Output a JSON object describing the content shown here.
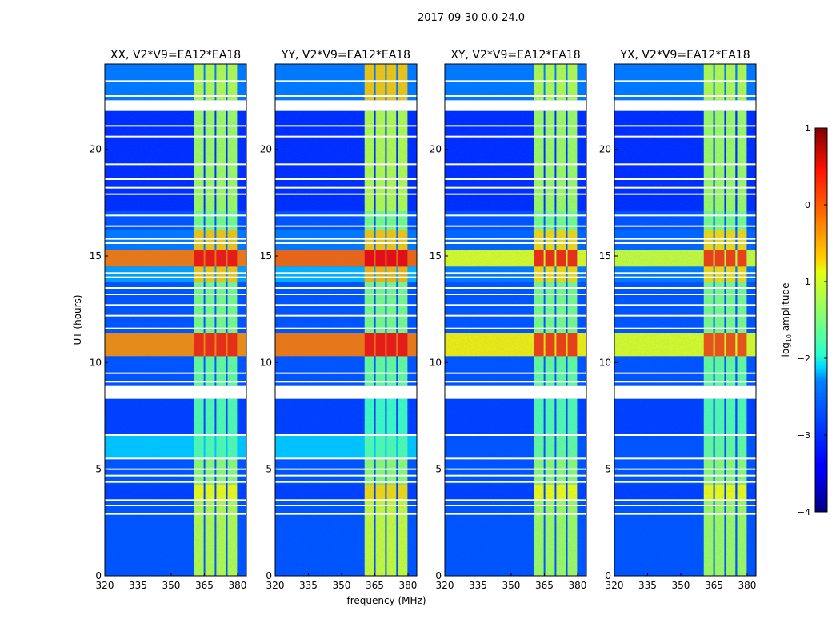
{
  "chart_data": {
    "type": "heatmap",
    "title": "2017-09-30 0.0-24.0",
    "xlabel": "frequency (MHz)",
    "ylabel": "UT (hours)",
    "xlim": [
      320,
      384
    ],
    "ylim": [
      0,
      24
    ],
    "xticks": [
      320,
      335,
      350,
      365,
      380
    ],
    "yticks": [
      0,
      5,
      10,
      15,
      20
    ],
    "panels": [
      {
        "title": "XX, V2*V9=EA12*EA18"
      },
      {
        "title": "YY, V2*V9=EA12*EA18"
      },
      {
        "title": "XY, V2*V9=EA12*EA18"
      },
      {
        "title": "YX, V2*V9=EA12*EA18"
      }
    ],
    "spectral_windows_mhz": [
      [
        360.4,
        364.7
      ],
      [
        365.4,
        369.7
      ],
      [
        370.4,
        374.7
      ],
      [
        375.5,
        379.8
      ]
    ],
    "time_bands": [
      {
        "ut": [
          0,
          3.6
        ],
        "bg": [
          -3.0,
          -3.0,
          -3.0,
          -3.0
        ],
        "spw": [
          -1.2,
          -1.1,
          -1.3,
          -1.3
        ]
      },
      {
        "ut": [
          3.6,
          4.3
        ],
        "bg": [
          -3.1,
          -3.1,
          -3.1,
          -3.1
        ],
        "spw": [
          -0.9,
          -0.7,
          -0.9,
          -0.9
        ]
      },
      {
        "ut": [
          4.3,
          5.5
        ],
        "bg": [
          -3.0,
          -3.0,
          -3.0,
          -3.0
        ],
        "spw": [
          -1.4,
          -1.4,
          -1.4,
          -1.4
        ]
      },
      {
        "ut": [
          5.5,
          6.6
        ],
        "bg": [
          -2.4,
          -2.4,
          -3.0,
          -3.0
        ],
        "spw": [
          -1.7,
          -1.7,
          -1.6,
          -1.6
        ]
      },
      {
        "ut": [
          6.6,
          8.3
        ],
        "bg": [
          -3.1,
          -3.1,
          -3.1,
          -3.1
        ],
        "spw": [
          -1.7,
          -1.8,
          -1.7,
          -1.7
        ]
      },
      {
        "ut": [
          8.9,
          10.3
        ],
        "bg": [
          -3.0,
          -3.0,
          -3.0,
          -3.0
        ],
        "spw": [
          -1.6,
          -1.6,
          -1.6,
          -1.6
        ]
      },
      {
        "ut": [
          10.3,
          11.4
        ],
        "bg": [
          -0.3,
          -0.2,
          -0.8,
          -1.0
        ],
        "spw": [
          0.2,
          0.3,
          0.1,
          0.0
        ]
      },
      {
        "ut": [
          11.4,
          13.8
        ],
        "bg": [
          -3.0,
          -3.0,
          -3.0,
          -3.0
        ],
        "spw": [
          -1.5,
          -1.5,
          -1.5,
          -1.5
        ]
      },
      {
        "ut": [
          13.8,
          14.5
        ],
        "bg": [
          -2.6,
          -2.5,
          -2.8,
          -2.8
        ],
        "spw": [
          -0.6,
          -0.5,
          -0.7,
          -0.7
        ]
      },
      {
        "ut": [
          14.5,
          15.3
        ],
        "bg": [
          -0.2,
          -0.1,
          -1.0,
          -1.1
        ],
        "spw": [
          0.3,
          0.4,
          0.2,
          0.1
        ]
      },
      {
        "ut": [
          15.3,
          16.2
        ],
        "bg": [
          -2.8,
          -2.8,
          -2.9,
          -2.9
        ],
        "spw": [
          -0.6,
          -0.6,
          -0.7,
          -0.7
        ]
      },
      {
        "ut": [
          16.2,
          17.1
        ],
        "bg": [
          -3.0,
          -3.0,
          -3.0,
          -3.0
        ],
        "spw": [
          -1.5,
          -1.5,
          -1.5,
          -1.5
        ]
      },
      {
        "ut": [
          17.1,
          21.8
        ],
        "bg": [
          -3.2,
          -3.2,
          -3.2,
          -3.2
        ],
        "spw": [
          -1.3,
          -1.2,
          -1.3,
          -1.3
        ]
      },
      {
        "ut": [
          22.3,
          24
        ],
        "bg": [
          -2.8,
          -2.8,
          -2.8,
          -2.8
        ],
        "spw": [
          -1.2,
          -0.6,
          -1.2,
          -1.2
        ]
      }
    ],
    "flagged_ut": [
      [
        8.3,
        8.9
      ],
      [
        21.8,
        22.3
      ]
    ],
    "flagged_lines_ut": [
      2.9,
      3.3,
      3.55,
      4.4,
      4.7,
      5.0,
      5.5,
      6.6,
      9.1,
      9.5,
      11.6,
      12.2,
      12.7,
      13.2,
      13.5,
      14.0,
      14.2,
      15.6,
      15.8,
      16.4,
      16.9,
      17.9,
      18.2,
      18.6,
      19.3,
      20.6,
      21.1,
      22.5,
      23.2
    ],
    "colorbar": {
      "label": "log10 amplitude",
      "range": [
        -4,
        1
      ],
      "ticks": [
        1,
        0,
        -1,
        -2,
        -3,
        -4
      ],
      "tick_labels": [
        "1",
        "0",
        "−1",
        "−2",
        "−3",
        "−4"
      ],
      "colormap": "jet"
    },
    "ytick_labels": [
      "0",
      "5",
      "10",
      "15",
      "20"
    ],
    "xtick_labels": [
      "320",
      "335",
      "350",
      "365",
      "380"
    ]
  }
}
